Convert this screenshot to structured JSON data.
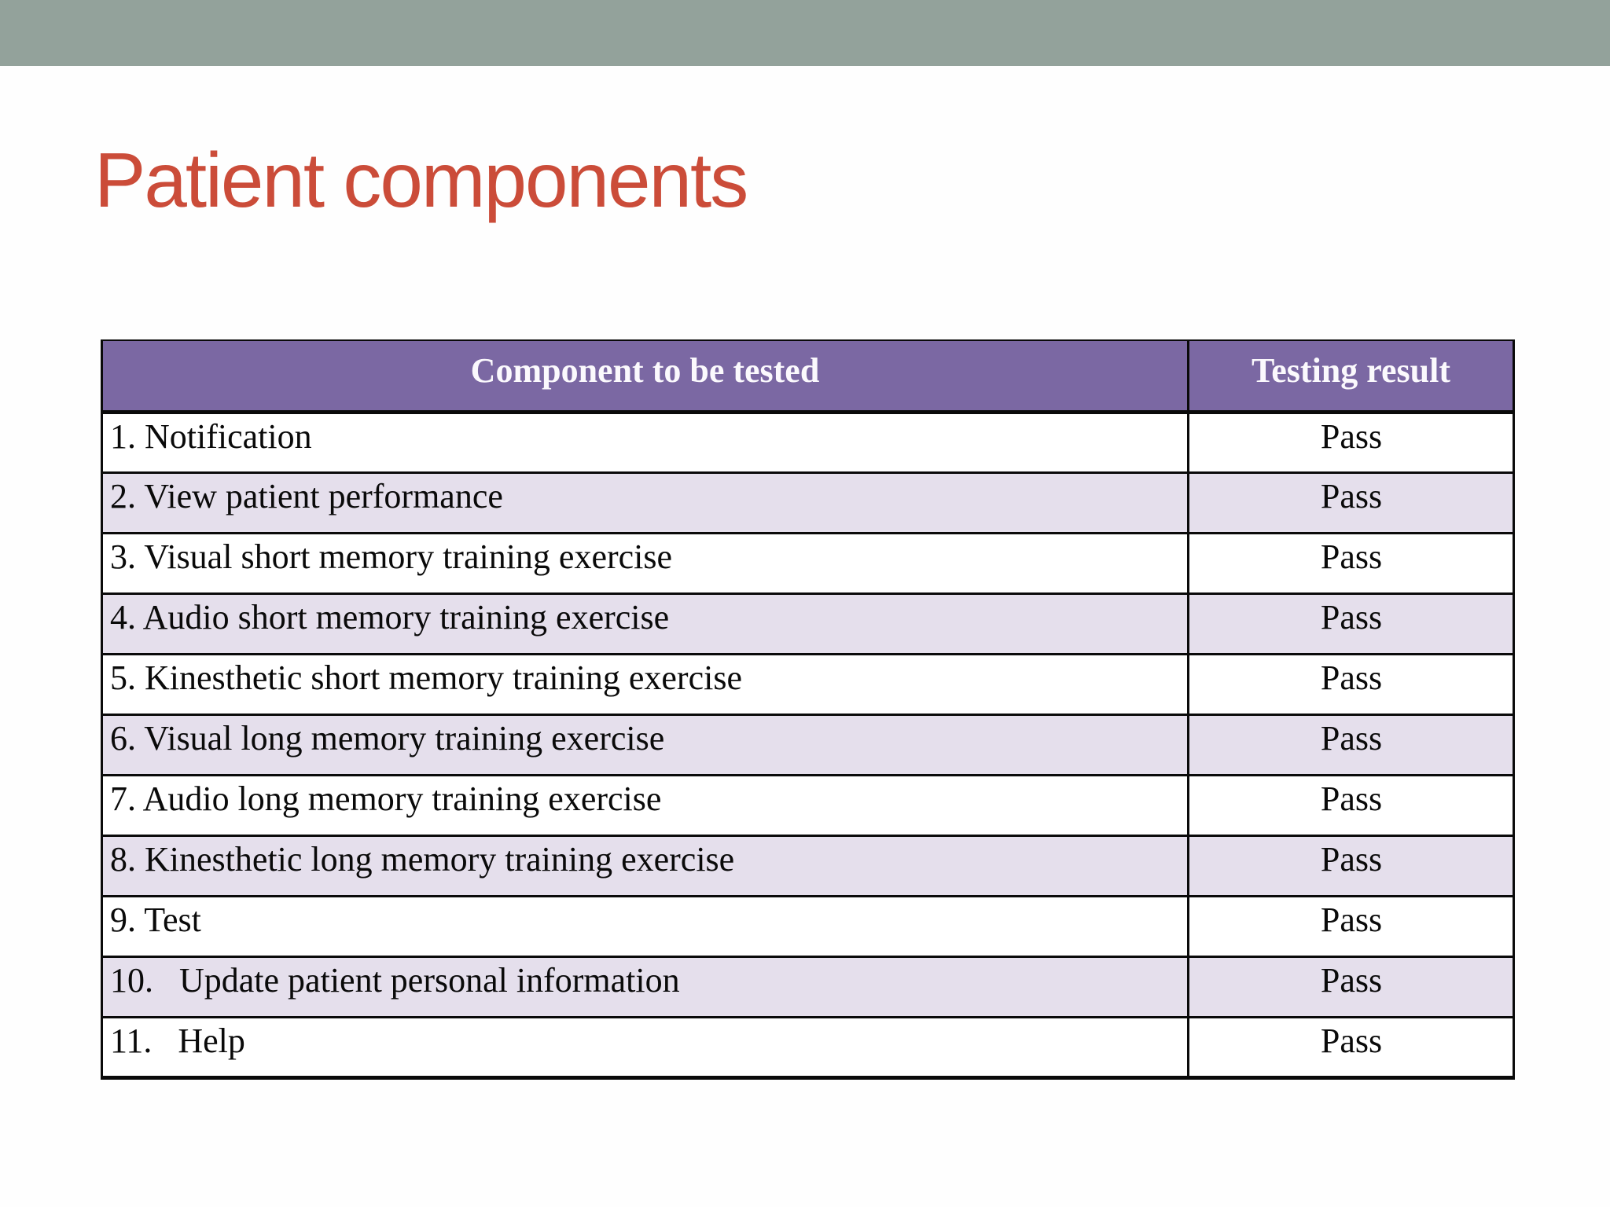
{
  "slide": {
    "title": "Patient components"
  },
  "theme": {
    "top_bar_color": "#93a29b",
    "title_color": "#cb4c39",
    "table_header_bg": "#7b68a3",
    "table_header_text": "#fbf9fd",
    "row_alt_bg": "#e5dfec",
    "row_bg": "#ffffff",
    "border_color": "#0a0a0a"
  },
  "table": {
    "columns": [
      "Component to be tested",
      "Testing result"
    ],
    "rows": [
      {
        "component": "1. Notification",
        "result": "Pass"
      },
      {
        "component": "2. View patient performance",
        "result": "Pass"
      },
      {
        "component": "3. Visual short memory training exercise",
        "result": "Pass"
      },
      {
        "component": "4. Audio short memory training exercise",
        "result": "Pass"
      },
      {
        "component": "5. Kinesthetic short memory training exercise",
        "result": "Pass"
      },
      {
        "component": "6. Visual long memory training exercise",
        "result": "Pass"
      },
      {
        "component": "7. Audio long memory training exercise",
        "result": "Pass"
      },
      {
        "component": "8. Kinesthetic long memory training exercise",
        "result": "Pass"
      },
      {
        "component": "9. Test",
        "result": "Pass"
      },
      {
        "component": "10.   Update patient personal information",
        "result": "Pass"
      },
      {
        "component": "11.   Help",
        "result": "Pass"
      }
    ]
  }
}
